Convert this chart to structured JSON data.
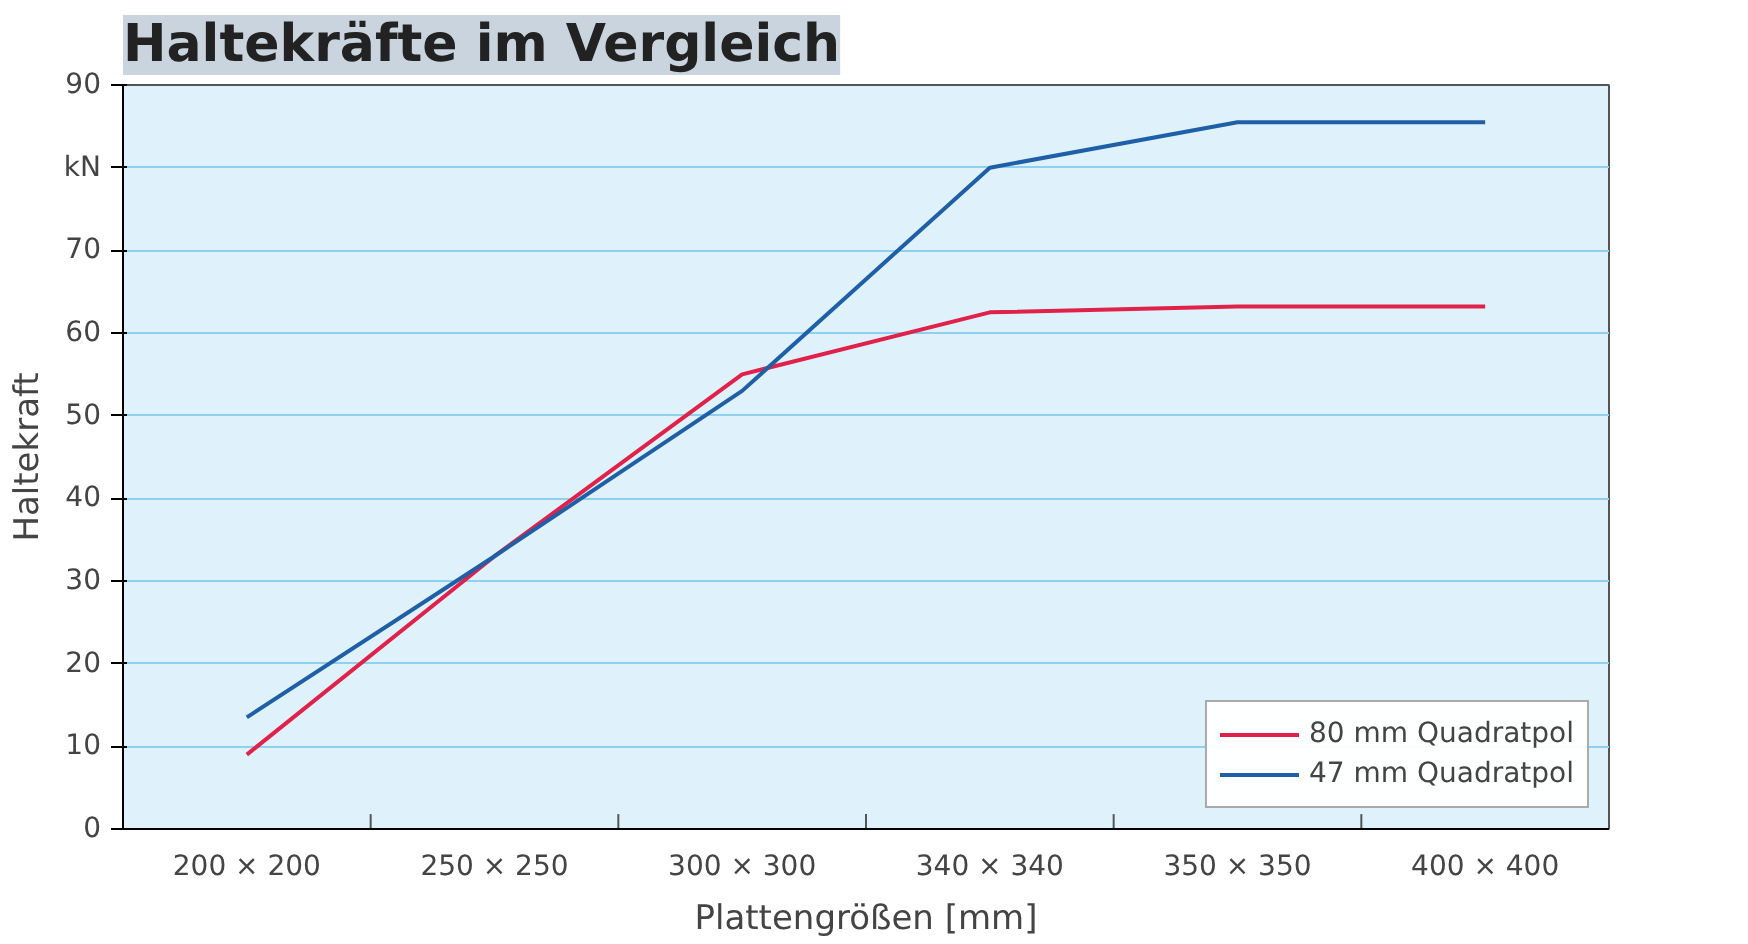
{
  "chart_data": {
    "type": "line",
    "title": "Haltekräfte im Vergleich",
    "xlabel": "Plattengrößen [mm]",
    "ylabel": "Haltekraft",
    "categories": [
      "200 × 200",
      "250 × 250",
      "300 × 300",
      "340 × 340",
      "350 × 350",
      "400 × 400"
    ],
    "series": [
      {
        "name": "80 mm Quadratpol",
        "color": "#e0224a",
        "values": [
          9,
          33,
          55,
          62.5,
          63.2,
          63.2
        ]
      },
      {
        "name": "47 mm Quadratpol",
        "color": "#1f5fa8",
        "values": [
          13.5,
          33,
          53,
          80,
          85.5,
          85.5
        ]
      }
    ],
    "ylim": [
      0,
      90
    ],
    "yticks": [
      0,
      10,
      20,
      30,
      40,
      50,
      60,
      70,
      {
        "value": 80,
        "label": "kN"
      },
      90
    ],
    "grid": "y",
    "legend": "bottom right",
    "line_style": "solid",
    "marker": "none"
  }
}
